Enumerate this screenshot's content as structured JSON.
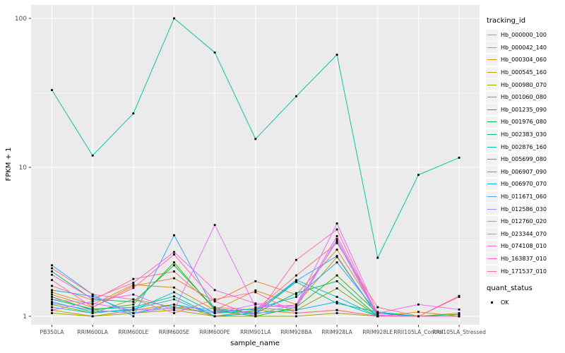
{
  "figure": {
    "x_axis_title": "sample_name",
    "y_axis_title": "FPKM + 1",
    "tracking_legend_title": "tracking_id",
    "quant_legend_title": "quant_status",
    "quant_ok_label": "OK"
  },
  "chart_data": {
    "type": "line",
    "title": "",
    "xlabel": "sample_name",
    "ylabel": "FPKM + 1",
    "y_scale": "log10",
    "y_ticks": [
      1,
      10,
      100
    ],
    "y_minor_ticks": [
      3.162,
      31.62
    ],
    "ylim": [
      0.88,
      120
    ],
    "grid": true,
    "legend_position": "right",
    "panel_bg": "#EBEBEB",
    "grid_color": "#FFFFFF",
    "axis_text_color": "#4D4D4D",
    "tick_mark_color": "#333333",
    "point_color": "#000000",
    "point_shape": "square",
    "categories": [
      "PB350LA",
      "RRIM600LA",
      "RRIM600LE",
      "RRIM600SE",
      "RRIM600PE",
      "RRIM901LA",
      "RRIM928BA",
      "RRIM928LA",
      "RRIM928LE",
      "RRII105LA_Control",
      "RRII105LA_Stressed"
    ],
    "series": [
      {
        "name": "Hb_000000_100",
        "color": "#F8766D",
        "values": [
          1.6,
          1.28,
          1.78,
          2.0,
          1.15,
          1.1,
          1.88,
          3.1,
          1.15,
          1.0,
          1.0
        ]
      },
      {
        "name": "Hb_000042_140",
        "color": "#EA8331",
        "values": [
          1.4,
          1.15,
          1.6,
          1.8,
          1.26,
          1.72,
          1.4,
          2.8,
          1.05,
          1.0,
          1.0
        ]
      },
      {
        "name": "Hb_000304_060",
        "color": "#D89000",
        "values": [
          1.45,
          1.2,
          1.63,
          1.56,
          1.1,
          1.49,
          1.2,
          2.5,
          1.0,
          1.07,
          1.0
        ]
      },
      {
        "name": "Hb_000545_160",
        "color": "#C09B00",
        "values": [
          1.1,
          1.0,
          1.1,
          1.2,
          1.0,
          1.1,
          1.05,
          1.1,
          1.0,
          1.0,
          1.05
        ]
      },
      {
        "name": "Hb_000980_070",
        "color": "#A3A500",
        "values": [
          1.05,
          1.0,
          1.05,
          1.1,
          1.0,
          1.0,
          1.0,
          1.05,
          1.0,
          1.0,
          1.0
        ]
      },
      {
        "name": "Hb_001060_080",
        "color": "#7CAE00",
        "values": [
          1.2,
          1.05,
          1.3,
          1.15,
          1.05,
          1.13,
          1.1,
          1.54,
          1.0,
          1.0,
          1.03
        ]
      },
      {
        "name": "Hb_001235_090",
        "color": "#39B600",
        "values": [
          1.35,
          1.1,
          1.2,
          2.3,
          1.1,
          1.0,
          1.15,
          1.88,
          1.05,
          1.0,
          1.0
        ]
      },
      {
        "name": "Hb_001976_080",
        "color": "#00BB4E",
        "values": [
          2.0,
          1.3,
          1.25,
          2.2,
          1.13,
          1.05,
          1.43,
          1.72,
          1.0,
          1.0,
          1.0
        ]
      },
      {
        "name": "Hb_002383_030",
        "color": "#00BF7D",
        "values": [
          1.3,
          1.12,
          1.15,
          1.36,
          1.0,
          1.05,
          1.7,
          1.22,
          1.07,
          1.0,
          1.03
        ]
      },
      {
        "name": "Hb_002876_160",
        "color": "#00C1A3",
        "values": [
          33,
          12,
          23,
          100,
          59,
          15.5,
          30,
          57,
          2.47,
          8.9,
          11.6
        ]
      },
      {
        "name": "Hb_005699_080",
        "color": "#00BFC4",
        "values": [
          1.25,
          1.07,
          1.1,
          1.45,
          1.05,
          1.08,
          1.75,
          1.35,
          1.0,
          1.0,
          1.0
        ]
      },
      {
        "name": "Hb_006907_090",
        "color": "#00BAE0",
        "values": [
          1.15,
          1.05,
          1.12,
          1.3,
          1.0,
          1.05,
          1.1,
          1.25,
          1.0,
          1.0,
          1.0
        ]
      },
      {
        "name": "Hb_006970_070",
        "color": "#00B0F6",
        "values": [
          1.5,
          1.36,
          1.05,
          1.2,
          1.07,
          1.12,
          1.35,
          2.3,
          1.05,
          1.0,
          1.0
        ]
      },
      {
        "name": "Hb_011671_060",
        "color": "#35A2FF",
        "values": [
          2.2,
          1.4,
          1.0,
          3.5,
          1.1,
          1.05,
          1.73,
          2.54,
          1.0,
          1.0,
          1.0
        ]
      },
      {
        "name": "Hb_012586_030",
        "color": "#9590FF",
        "values": [
          1.22,
          1.1,
          1.05,
          1.15,
          1.12,
          1.03,
          1.2,
          3.2,
          1.0,
          1.0,
          1.0
        ]
      },
      {
        "name": "Hb_012760_020",
        "color": "#C77CFF",
        "values": [
          1.3,
          1.22,
          1.1,
          1.13,
          1.05,
          1.2,
          1.13,
          3.3,
          1.02,
          1.0,
          1.0
        ]
      },
      {
        "name": "Hb_023344_070",
        "color": "#E76BF3",
        "values": [
          1.1,
          1.26,
          1.4,
          1.1,
          4.1,
          1.15,
          1.19,
          4.2,
          1.05,
          1.2,
          1.11
        ]
      },
      {
        "name": "Hb_074108_010",
        "color": "#FA62DB",
        "values": [
          1.9,
          1.31,
          1.68,
          2.7,
          1.5,
          1.22,
          1.16,
          3.45,
          1.02,
          1.0,
          1.0
        ]
      },
      {
        "name": "Hb_163837_010",
        "color": "#FF62BC",
        "values": [
          1.75,
          1.15,
          1.55,
          2.6,
          1.26,
          1.0,
          2.39,
          3.83,
          1.0,
          1.0,
          1.37
        ]
      },
      {
        "name": "Hb_171537_010",
        "color": "#FF6A98",
        "values": [
          2.1,
          1.4,
          1.3,
          1.05,
          1.3,
          1.45,
          1.05,
          1.1,
          1.0,
          1.0,
          1.35
        ]
      }
    ],
    "quant_status": {
      "title": "quant_status",
      "entries": [
        {
          "label": "OK",
          "shape": "square",
          "color": "#000000"
        }
      ]
    }
  }
}
